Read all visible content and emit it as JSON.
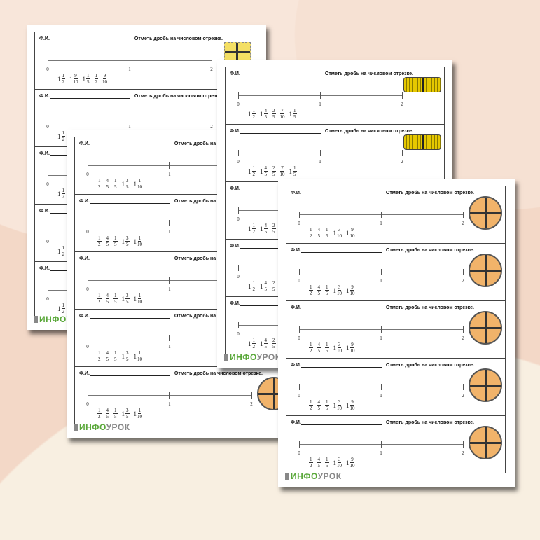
{
  "strip_header": {
    "name_label": "Ф.И.",
    "task": "Отметь дробь на числовом отрезке."
  },
  "axis_ticks": [
    "0",
    "1",
    "2"
  ],
  "logo": {
    "part1": "ИНФО",
    "part2": "УРОК"
  },
  "colors": {
    "logo_green": "#5aa83a",
    "logo_gray": "#888888",
    "background": "#f3d8c7"
  },
  "sheets": [
    {
      "id": "A",
      "picture": "cheese-icon",
      "strips": 5,
      "fractions": [
        {
          "w": "1",
          "n": "1",
          "d": "2"
        },
        {
          "w": "1",
          "n": "9",
          "d": "10"
        },
        {
          "w": "1",
          "n": "1",
          "d": "5"
        },
        {
          "w": "",
          "n": "1",
          "d": "2"
        },
        {
          "w": "",
          "n": "9",
          "d": "10"
        }
      ]
    },
    {
      "id": "B",
      "picture": "cookie-icon",
      "strips": 5,
      "fractions": [
        {
          "w": "",
          "n": "1",
          "d": "2"
        },
        {
          "w": "",
          "n": "4",
          "d": "5"
        },
        {
          "w": "",
          "n": "1",
          "d": "5"
        },
        {
          "w": "1",
          "n": "3",
          "d": "5"
        },
        {
          "w": "1",
          "n": "1",
          "d": "10"
        }
      ]
    },
    {
      "id": "C",
      "picture": "corn-icon",
      "strips": 5,
      "fractions": [
        {
          "w": "1",
          "n": "1",
          "d": "2"
        },
        {
          "w": "1",
          "n": "4",
          "d": "5"
        },
        {
          "w": "",
          "n": "2",
          "d": "5"
        },
        {
          "w": "",
          "n": "7",
          "d": "10"
        },
        {
          "w": "1",
          "n": "1",
          "d": "5"
        }
      ]
    },
    {
      "id": "D",
      "picture": "pie-icon",
      "strips": 5,
      "fractions": [
        {
          "w": "",
          "n": "1",
          "d": "2"
        },
        {
          "w": "",
          "n": "4",
          "d": "5"
        },
        {
          "w": "",
          "n": "1",
          "d": "5"
        },
        {
          "w": "1",
          "n": "3",
          "d": "10"
        },
        {
          "w": "1",
          "n": "9",
          "d": "10"
        }
      ]
    }
  ]
}
